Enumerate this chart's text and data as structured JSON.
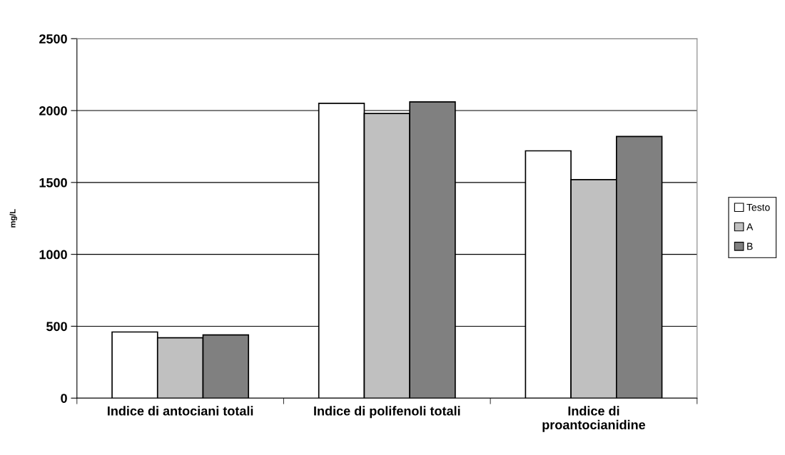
{
  "chart_data": {
    "type": "bar",
    "categories": [
      "Indice di antociani totali",
      "Indice di polifenoli totali",
      "Indice di\nproantocianidine"
    ],
    "series": [
      {
        "name": "Testo",
        "color": "#ffffff",
        "values": [
          460,
          2050,
          1720
        ]
      },
      {
        "name": "A",
        "color": "#c0c0c0",
        "values": [
          420,
          1980,
          1520
        ]
      },
      {
        "name": "B",
        "color": "#808080",
        "values": [
          440,
          2060,
          1820
        ]
      }
    ],
    "ylabel": "mg/L",
    "ylim": [
      0,
      2500
    ],
    "yticks": [
      0,
      500,
      1000,
      1500,
      2000,
      2500
    ],
    "grid": "y",
    "legend": "right"
  }
}
